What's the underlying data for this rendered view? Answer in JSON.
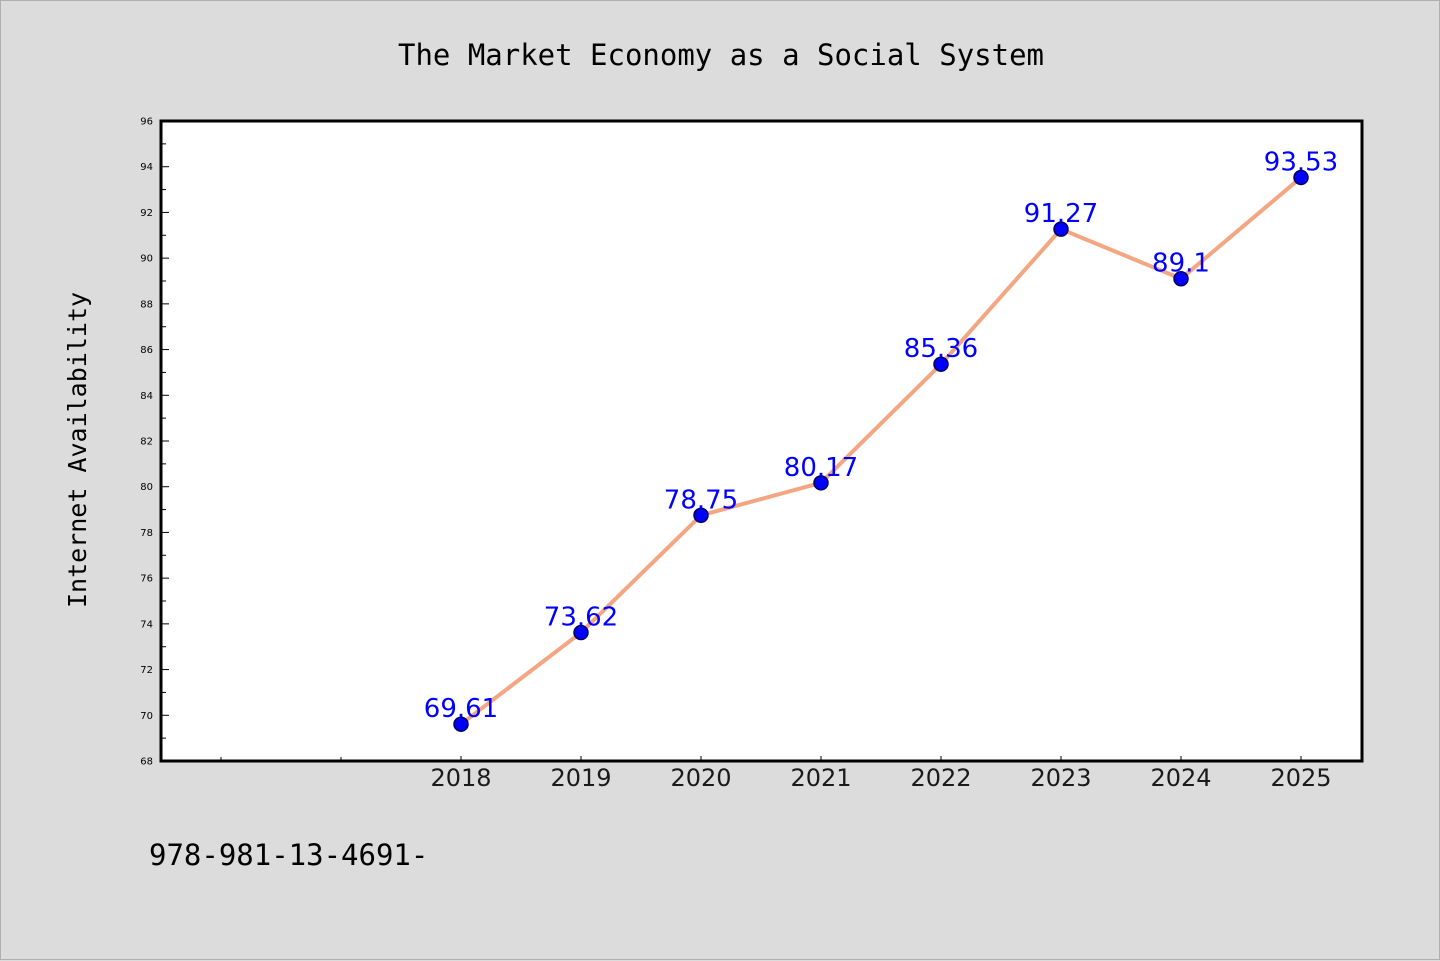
{
  "chart_data": {
    "type": "line",
    "title": "The Market Economy as a Social System",
    "xlabel": "",
    "ylabel": "Internet Availability",
    "categories": [
      "2018",
      "2019",
      "2020",
      "2021",
      "2022",
      "2023",
      "2024",
      "2025"
    ],
    "series": [
      {
        "values": [
          69.61,
          73.62,
          78.75,
          80.17,
          85.36,
          91.27,
          89.1,
          93.53
        ],
        "data_labels": [
          "69.61",
          "73.62",
          "78.75",
          "80.17",
          "85.36",
          "91.27",
          "89.1",
          "93.53"
        ]
      }
    ],
    "ylim": [
      68,
      96
    ],
    "yticks": [
      "68",
      "70",
      "72",
      "74",
      "76",
      "78",
      "80",
      "82",
      "84",
      "86",
      "88",
      "90",
      "92",
      "94",
      "96"
    ],
    "grid": false,
    "legend": "none",
    "colors": {
      "line": "#f4a582",
      "marker": "#0000ff",
      "data_label": "#0000ff",
      "plot_background": "#ffffff",
      "page_background": "#dcdcdc"
    }
  },
  "footer": {
    "text": "978-981-13-4691-"
  }
}
